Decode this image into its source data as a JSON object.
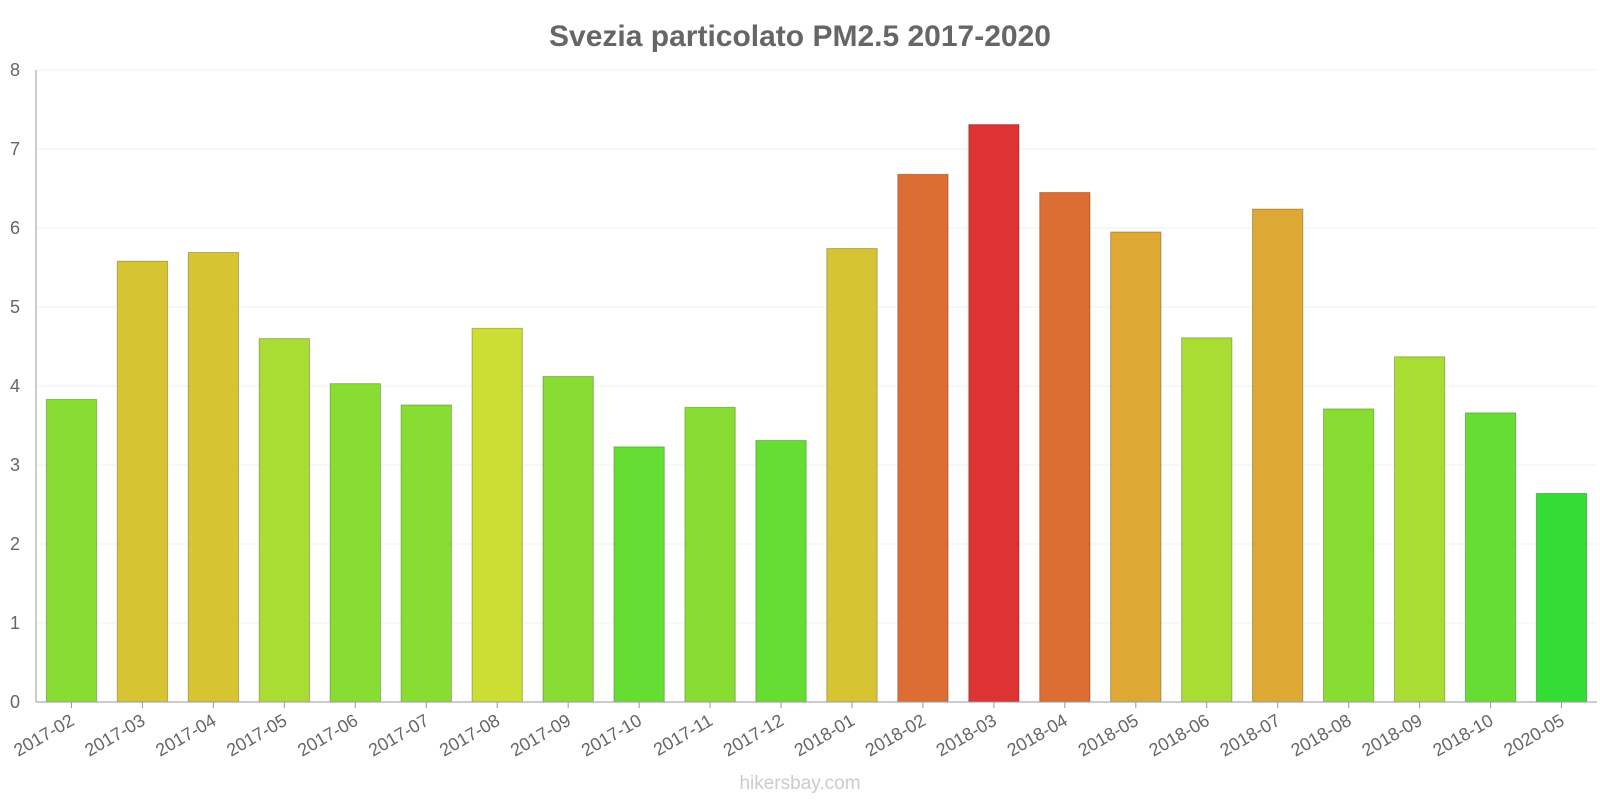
{
  "chart_data": {
    "type": "bar",
    "title": "Svezia particolato PM2.5 2017-2020",
    "xlabel": "",
    "ylabel": "",
    "ylim": [
      0,
      8
    ],
    "yticks": [
      "0",
      "1",
      "2",
      "3",
      "4",
      "5",
      "6",
      "7",
      "8"
    ],
    "grid": true,
    "categories": [
      "2017-02",
      "2017-03",
      "2017-04",
      "2017-05",
      "2017-06",
      "2017-07",
      "2017-08",
      "2017-09",
      "2017-10",
      "2017-11",
      "2017-12",
      "2018-01",
      "2018-02",
      "2018-03",
      "2018-04",
      "2018-05",
      "2018-06",
      "2018-07",
      "2018-08",
      "2018-09",
      "2018-10",
      "2020-05"
    ],
    "values": [
      3.83,
      5.58,
      5.69,
      4.6,
      4.03,
      3.76,
      4.73,
      4.12,
      3.23,
      3.73,
      3.31,
      5.74,
      6.68,
      7.31,
      6.45,
      5.95,
      4.61,
      6.24,
      3.71,
      4.37,
      3.66,
      2.64
    ],
    "colors": [
      "#88dd33",
      "#d6c433",
      "#d6c433",
      "#aadd33",
      "#88dd33",
      "#88dd33",
      "#ccdd33",
      "#88dd33",
      "#66dd33",
      "#88dd33",
      "#66dd33",
      "#d6c433",
      "#dd6e33",
      "#dd3333",
      "#dd6e33",
      "#dda833",
      "#aadd33",
      "#dda833",
      "#88dd33",
      "#aadd33",
      "#66dd33",
      "#33dd33"
    ]
  },
  "footer": "hikersbay.com"
}
